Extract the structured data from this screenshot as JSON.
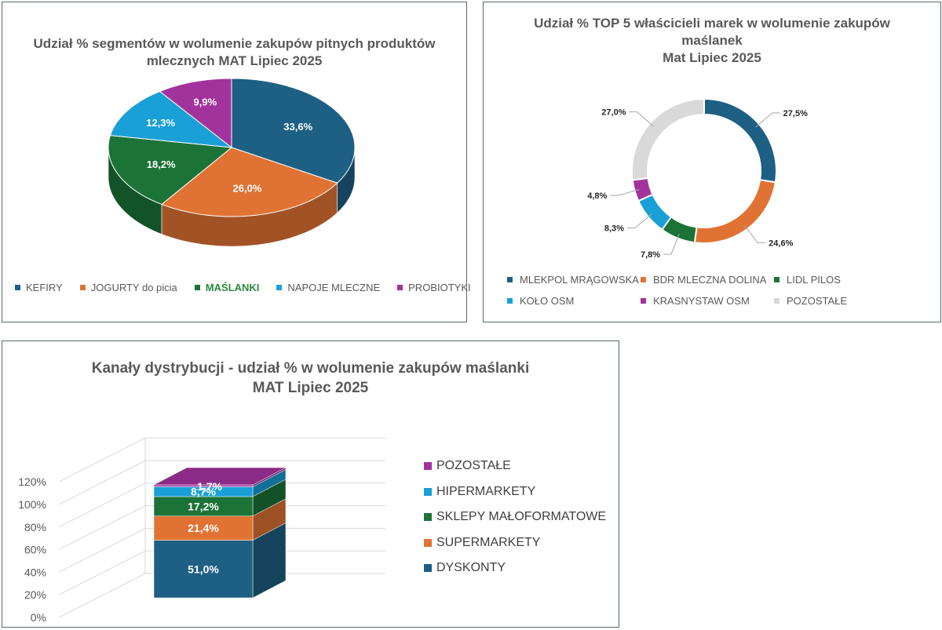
{
  "colors": {
    "blue_dark": "#1e5f84",
    "orange": "#e07334",
    "green": "#1b7337",
    "cyan": "#19a0d6",
    "purple": "#a3339c",
    "grey": "#d9d9d9",
    "title": "#595959",
    "highlight_green": "#2a8a3c"
  },
  "chart_data": [
    {
      "type": "pie",
      "title_lines": [
        "Udział % segmentów w wolumenie zakupów pitnych produktów",
        "mlecznych MAT Lipiec 2025"
      ],
      "categories": [
        "KEFIRY",
        "JOGURTY do picia",
        "MAŚLANKI",
        "NAPOJE MLECZNE",
        "PROBIOTYKI"
      ],
      "values": [
        33.6,
        26.0,
        18.2,
        12.3,
        9.9
      ],
      "data_labels": [
        "33,6%",
        "26,0%",
        "18,2%",
        "12,3%",
        "9,9%"
      ],
      "highlight_category": "MAŚLANKI",
      "legend_position": "bottom"
    },
    {
      "type": "pie",
      "subtype": "donut",
      "title_lines": [
        "Udział % TOP 5 właścicieli marek w wolumenie zakupów",
        "maślanek",
        "Mat Lipiec 2025"
      ],
      "categories": [
        "MLEKPOL MRĄGOWSKA",
        "BDR MLECZNA DOLINA",
        "LIDL PILOS",
        "KOŁO OSM",
        "KRASNYSTAW OSM",
        "POZOSTAŁE"
      ],
      "values": [
        27.5,
        24.6,
        7.8,
        8.3,
        4.8,
        27.0
      ],
      "data_labels": [
        "27,5%",
        "24,6%",
        "7,8%",
        "8,3%",
        "4,8%",
        "27,0%"
      ],
      "legend_position": "bottom"
    },
    {
      "type": "bar",
      "subtype": "stacked-3d",
      "title_lines": [
        "Kanały dystrybucji - udział % w wolumenie zakupów maślanki",
        "MAT Lipiec 2025"
      ],
      "series": [
        {
          "name": "DYSKONTY",
          "values": [
            51.0
          ],
          "label": "51,0%"
        },
        {
          "name": "SUPERMARKETY",
          "values": [
            21.4
          ],
          "label": "21,4%"
        },
        {
          "name": "SKLEPY MAŁOFORMATOWE",
          "values": [
            17.2
          ],
          "label": "17,2%"
        },
        {
          "name": "HIPERMARKETY",
          "values": [
            8.7
          ],
          "label": "8,7%"
        },
        {
          "name": "POZOSTAŁE",
          "values": [
            1.7
          ],
          "label": "1,7%"
        }
      ],
      "yticks": [
        "0%",
        "20%",
        "40%",
        "60%",
        "80%",
        "100%",
        "120%"
      ],
      "ylim": [
        0,
        120
      ],
      "legend_position": "right"
    }
  ]
}
